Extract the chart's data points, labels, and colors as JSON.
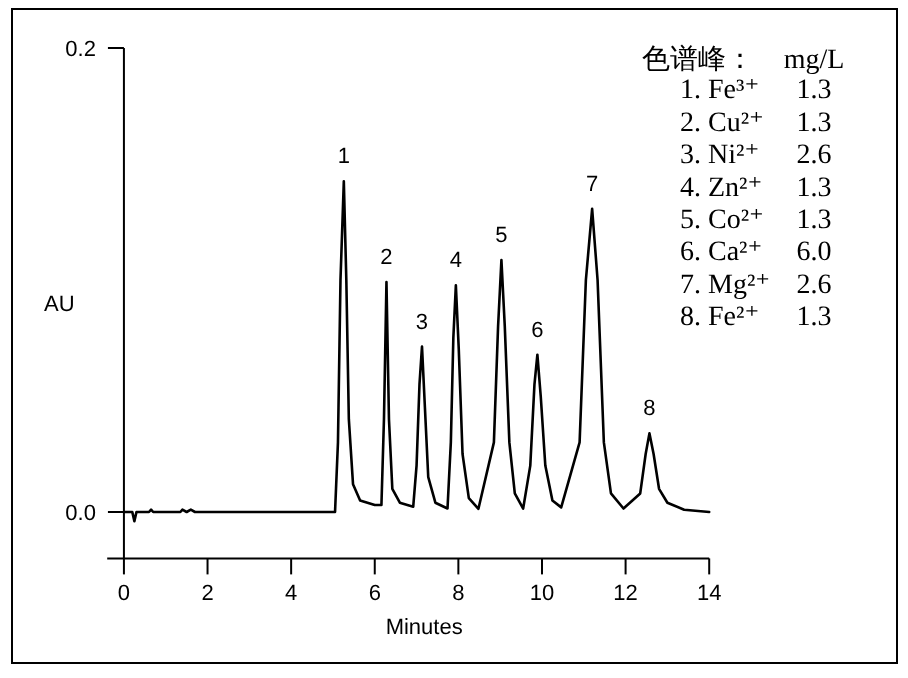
{
  "chart_data": {
    "type": "line",
    "xlabel": "Minutes",
    "ylabel": "AU",
    "xlim": [
      -0.4,
      14
    ],
    "ylim": [
      -0.02,
      0.2
    ],
    "xticks": [
      0,
      2,
      4,
      6,
      8,
      10,
      12,
      14
    ],
    "yticks": [
      {
        "value": 0,
        "label": "0.0"
      },
      {
        "value": 0.2,
        "label": "0.2"
      }
    ],
    "x": [
      0,
      0.2,
      0.25,
      0.3,
      0.6,
      0.65,
      0.7,
      1.35,
      1.4,
      1.5,
      1.6,
      1.7,
      5.05,
      5.12,
      5.18,
      5.26,
      5.32,
      5.38,
      5.48,
      5.65,
      6.0,
      6.16,
      6.22,
      6.28,
      6.34,
      6.42,
      6.6,
      6.92,
      7.0,
      7.07,
      7.13,
      7.2,
      7.28,
      7.45,
      7.74,
      7.82,
      7.88,
      7.94,
      8.01,
      8.1,
      8.25,
      8.48,
      8.85,
      8.95,
      9.03,
      9.11,
      9.22,
      9.35,
      9.55,
      9.72,
      9.82,
      9.89,
      9.97,
      10.08,
      10.25,
      10.46,
      10.9,
      11.05,
      11.2,
      11.33,
      11.48,
      11.65,
      11.95,
      12.35,
      12.48,
      12.57,
      12.67,
      12.8,
      13.0,
      13.4,
      14.0
    ],
    "series": [
      {
        "color": "#000000",
        "values": [
          0,
          0,
          -0.004,
          0,
          0,
          0.001,
          0,
          0,
          0.001,
          0,
          0.001,
          0,
          0,
          0.03,
          0.1,
          0.1425,
          0.1,
          0.04,
          0.012,
          0.005,
          0.003,
          0.003,
          0.04,
          0.0991,
          0.04,
          0.01,
          0.004,
          0.0023,
          0.02,
          0.055,
          0.0713,
          0.045,
          0.015,
          0.004,
          0.0015,
          0.03,
          0.075,
          0.0977,
          0.07,
          0.025,
          0.006,
          0.0014,
          0.03,
          0.08,
          0.1086,
          0.08,
          0.03,
          0.008,
          0.0015,
          0.02,
          0.055,
          0.0678,
          0.05,
          0.02,
          0.005,
          0.002,
          0.03,
          0.1,
          0.1307,
          0.1,
          0.03,
          0.008,
          0.0015,
          0.008,
          0.025,
          0.0339,
          0.025,
          0.01,
          0.004,
          0.001,
          0.0
        ]
      }
    ],
    "annotations": [
      "色谱峰：",
      "mg/L",
      "1.  Fe³⁺",
      "1.3",
      "2. Cu²⁺",
      "1.3",
      "3. Ni²⁺",
      "2.6",
      "4. Zn²⁺",
      "1.3",
      "5. Co²⁺",
      "1.3",
      "6. Ca²⁺",
      "6.0",
      "7. Mg²⁺",
      "2.6",
      "8. Fe²⁺",
      "1.3",
      {
        "text": "1",
        "x": 5.26,
        "y": 0.1425
      },
      {
        "text": "2",
        "x": 6.28,
        "y": 0.0991
      },
      {
        "text": "3",
        "x": 7.13,
        "y": 0.0713
      },
      {
        "text": "4",
        "x": 7.94,
        "y": 0.0977
      },
      {
        "text": "5",
        "x": 9.03,
        "y": 0.1086
      },
      {
        "text": "6",
        "x": 9.89,
        "y": 0.0678
      },
      {
        "text": "7",
        "x": 11.2,
        "y": 0.1307
      },
      {
        "text": "8",
        "x": 12.57,
        "y": 0.0339
      }
    ]
  }
}
